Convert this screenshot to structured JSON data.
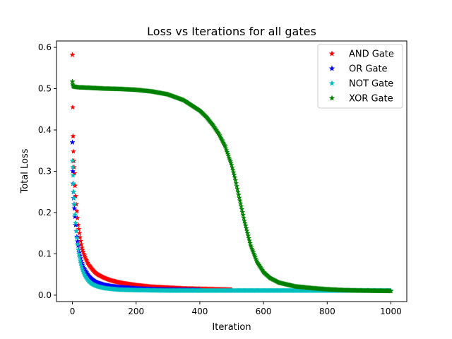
{
  "chart_data": {
    "type": "scatter",
    "title": "Loss vs Iterations for all gates",
    "xlabel": "Iteration",
    "ylabel": "Total Loss",
    "xlim": [
      -50,
      1050
    ],
    "ylim": [
      -0.0155,
      0.6155
    ],
    "xticks": [
      0,
      200,
      400,
      600,
      800,
      1000
    ],
    "yticks": [
      0.0,
      0.1,
      0.2,
      0.3,
      0.4,
      0.5,
      0.6
    ],
    "xtick_labels": [
      "0",
      "200",
      "400",
      "600",
      "800",
      "1000"
    ],
    "ytick_labels": [
      "0.0",
      "0.1",
      "0.2",
      "0.3",
      "0.4",
      "0.5",
      "0.6"
    ],
    "grid": false,
    "legend_position": "top-right",
    "marker": "star",
    "series": [
      {
        "name": "AND Gate",
        "color": "#ff0000",
        "x": [
          0,
          1,
          2,
          3,
          4,
          5,
          6,
          8,
          10,
          12,
          15,
          18,
          20,
          25,
          30,
          35,
          40,
          50,
          60,
          70,
          80,
          100,
          120,
          150,
          200,
          250,
          300,
          350,
          400,
          450,
          500
        ],
        "y": [
          0.582,
          0.455,
          0.385,
          0.348,
          0.325,
          0.31,
          0.295,
          0.265,
          0.24,
          0.22,
          0.195,
          0.17,
          0.16,
          0.135,
          0.115,
          0.102,
          0.092,
          0.075,
          0.065,
          0.056,
          0.05,
          0.042,
          0.036,
          0.03,
          0.024,
          0.02,
          0.018,
          0.016,
          0.015,
          0.014,
          0.013
        ]
      },
      {
        "name": "OR Gate",
        "color": "#0000ff",
        "x": [
          0,
          1,
          2,
          3,
          4,
          5,
          6,
          8,
          10,
          12,
          15,
          18,
          20,
          25,
          30,
          35,
          40,
          50,
          60,
          70,
          80,
          100,
          120,
          150,
          200,
          250,
          300,
          400
        ],
        "y": [
          0.37,
          0.3,
          0.27,
          0.25,
          0.235,
          0.22,
          0.21,
          0.19,
          0.17,
          0.155,
          0.135,
          0.12,
          0.11,
          0.092,
          0.078,
          0.067,
          0.06,
          0.048,
          0.04,
          0.034,
          0.03,
          0.025,
          0.022,
          0.019,
          0.016,
          0.014,
          0.013,
          0.012
        ]
      },
      {
        "name": "NOT Gate",
        "color": "#00bfbf",
        "x": [
          0,
          1,
          2,
          3,
          4,
          5,
          6,
          8,
          10,
          12,
          15,
          18,
          20,
          25,
          30,
          35,
          40,
          50,
          60,
          70,
          80,
          100,
          120,
          150,
          200,
          300,
          400,
          500,
          600,
          700,
          800,
          900,
          1000
        ],
        "y": [
          0.325,
          0.31,
          0.29,
          0.27,
          0.25,
          0.235,
          0.22,
          0.195,
          0.175,
          0.155,
          0.13,
          0.11,
          0.1,
          0.08,
          0.065,
          0.054,
          0.046,
          0.035,
          0.028,
          0.024,
          0.021,
          0.017,
          0.015,
          0.013,
          0.012,
          0.011,
          0.011,
          0.011,
          0.011,
          0.011,
          0.011,
          0.011,
          0.011
        ]
      },
      {
        "name": "XOR Gate",
        "color": "#008000",
        "x": [
          0,
          1,
          2,
          5,
          10,
          20,
          50,
          100,
          150,
          200,
          250,
          300,
          350,
          400,
          420,
          440,
          460,
          480,
          500,
          510,
          520,
          530,
          540,
          550,
          560,
          580,
          600,
          620,
          650,
          700,
          750,
          800,
          850,
          900,
          950,
          1000
        ],
        "y": [
          0.517,
          0.51,
          0.506,
          0.505,
          0.504,
          0.503,
          0.502,
          0.5,
          0.499,
          0.497,
          0.493,
          0.486,
          0.472,
          0.447,
          0.432,
          0.413,
          0.39,
          0.36,
          0.315,
          0.285,
          0.25,
          0.215,
          0.18,
          0.15,
          0.12,
          0.08,
          0.056,
          0.042,
          0.03,
          0.021,
          0.017,
          0.014,
          0.012,
          0.011,
          0.0105,
          0.01
        ]
      }
    ]
  }
}
